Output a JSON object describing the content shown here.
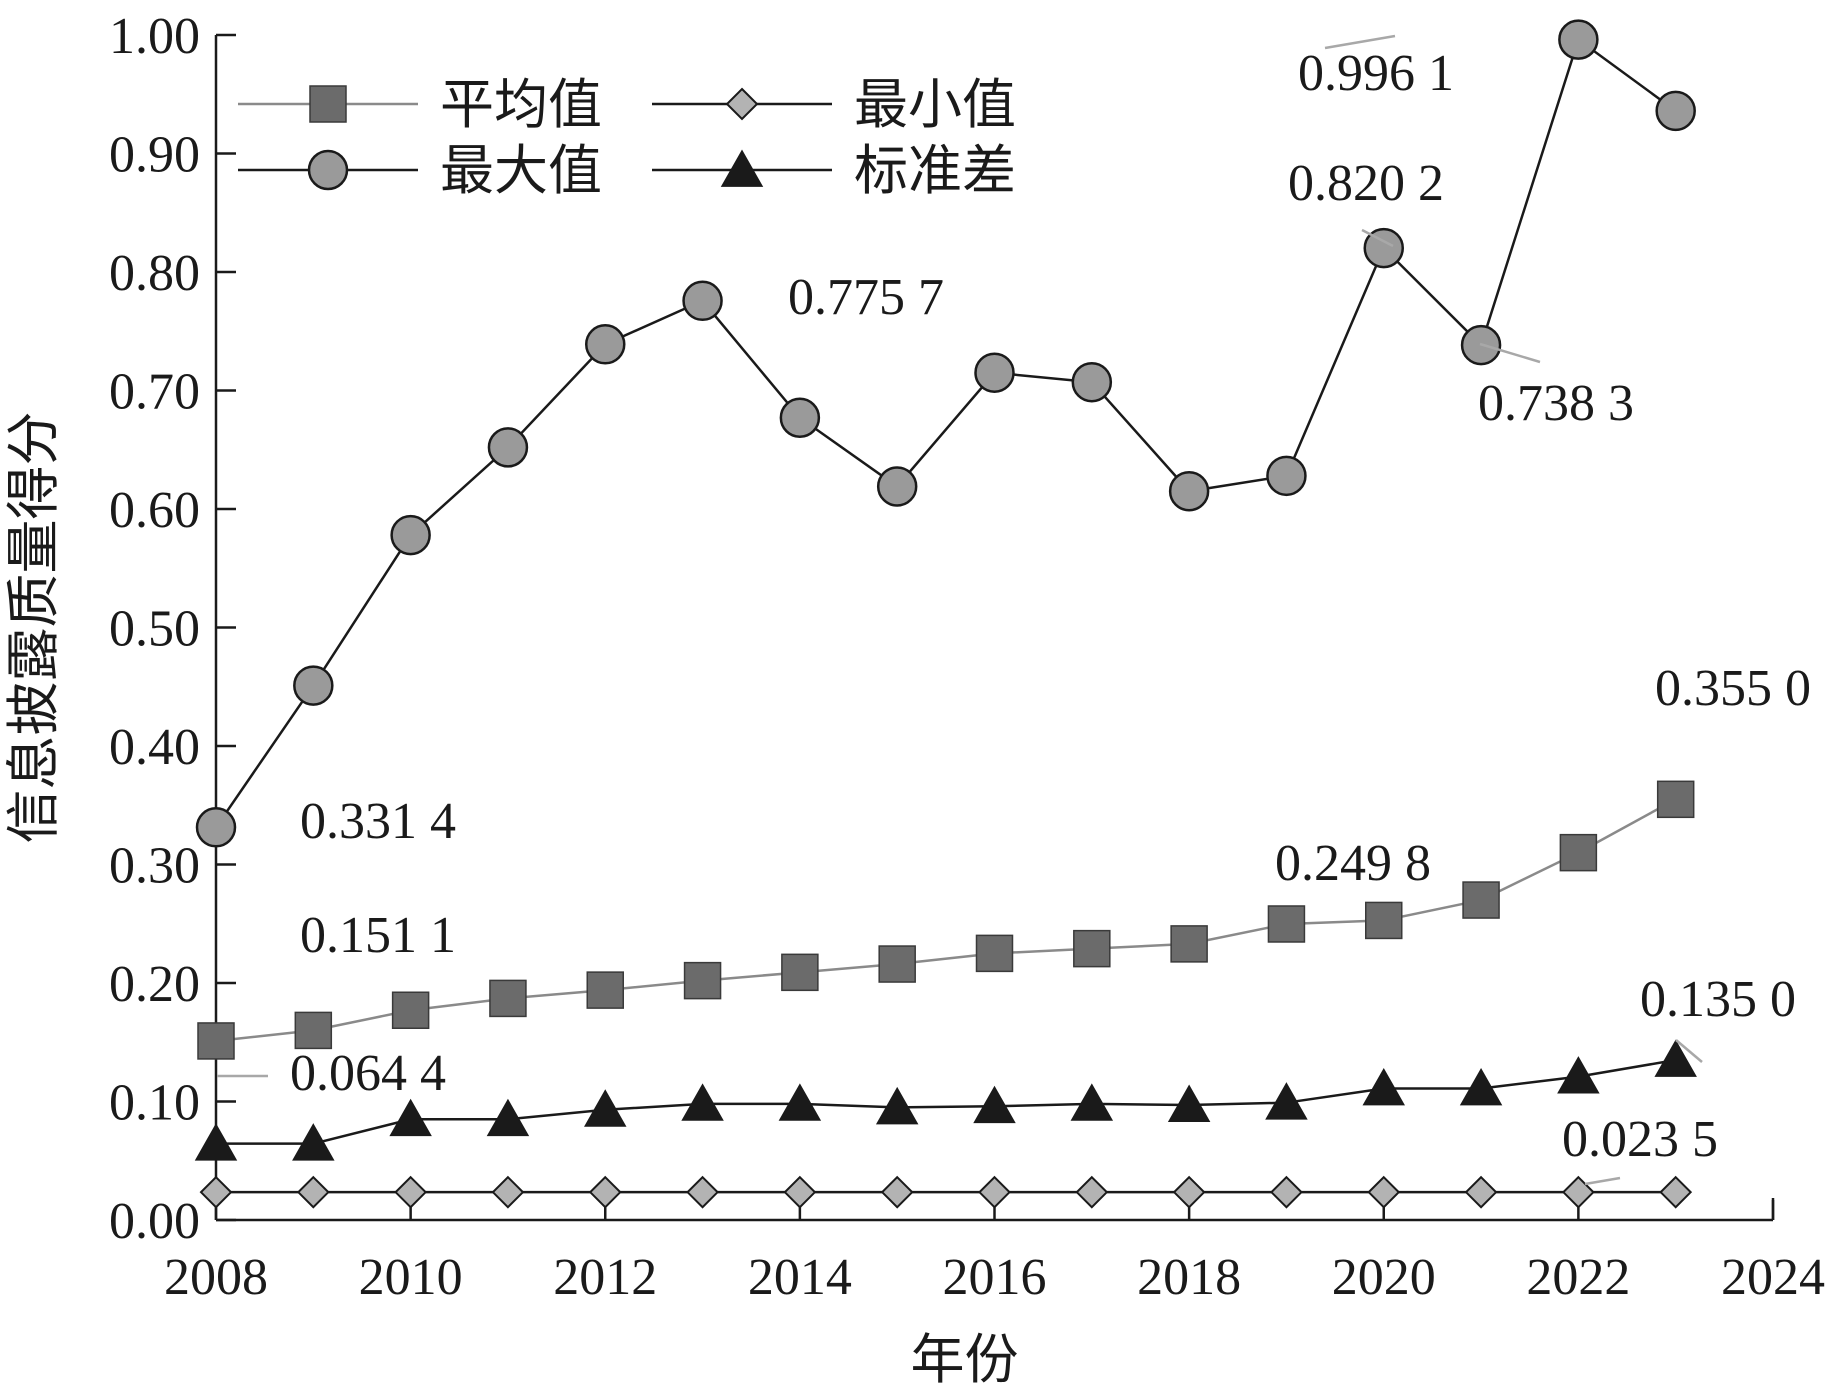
{
  "chart_data": {
    "type": "line",
    "xlabel": "年份",
    "ylabel": "信息披露质量得分",
    "xlim": [
      2008,
      2024
    ],
    "ylim": [
      0,
      1
    ],
    "x_ticks": [
      "2008",
      "2010",
      "2012",
      "2014",
      "2016",
      "2018",
      "2020",
      "2022",
      "2024"
    ],
    "y_ticks": [
      "0.00",
      "0.10",
      "0.20",
      "0.30",
      "0.40",
      "0.50",
      "0.60",
      "0.70",
      "0.80",
      "0.90",
      "1.00"
    ],
    "grid": false,
    "legend_position": "top-left",
    "x": [
      2008,
      2009,
      2010,
      2011,
      2012,
      2013,
      2014,
      2015,
      2016,
      2017,
      2018,
      2019,
      2020,
      2021,
      2022,
      2023
    ],
    "series": [
      {
        "name": "平均值",
        "marker": "square",
        "line_color": "#8a8a8a",
        "marker_color": "#6b6b6b",
        "values": [
          0.1511,
          0.16,
          0.177,
          0.187,
          0.194,
          0.202,
          0.209,
          0.216,
          0.225,
          0.229,
          0.233,
          0.2498,
          0.2528,
          0.27,
          0.31,
          0.355
        ]
      },
      {
        "name": "最小值",
        "marker": "diamond",
        "line_color": "#1a1a1a",
        "marker_color": "#b3b3b3",
        "values": [
          0.0235,
          0.0235,
          0.0235,
          0.0235,
          0.0235,
          0.0235,
          0.0235,
          0.0235,
          0.0235,
          0.0235,
          0.0235,
          0.0235,
          0.0235,
          0.0235,
          0.0235,
          0.0235
        ]
      },
      {
        "name": "最大值",
        "marker": "circle",
        "line_color": "#1a1a1a",
        "marker_color": "#9a9a9a",
        "values": [
          0.3314,
          0.451,
          0.578,
          0.652,
          0.739,
          0.7757,
          0.677,
          0.619,
          0.715,
          0.707,
          0.615,
          0.628,
          0.8202,
          0.7383,
          0.9961,
          0.936
        ]
      },
      {
        "name": "标准差",
        "marker": "triangle",
        "line_color": "#1a1a1a",
        "marker_color": "#1a1a1a",
        "values": [
          0.0644,
          0.0644,
          0.085,
          0.085,
          0.093,
          0.098,
          0.098,
          0.095,
          0.096,
          0.098,
          0.097,
          0.099,
          0.111,
          0.111,
          0.121,
          0.135
        ]
      }
    ],
    "annotations": [
      {
        "text": "0.996 1",
        "x": 2022,
        "y": 0.9961,
        "leader": true
      },
      {
        "text": "0.820 2",
        "x": 2020,
        "y": 0.8202,
        "leader": true
      },
      {
        "text": "0.738 3",
        "x": 2021,
        "y": 0.7383,
        "leader": true
      },
      {
        "text": "0.775 7",
        "x": 2013,
        "y": 0.7757,
        "leader": false
      },
      {
        "text": "0.355 0",
        "x": 2023,
        "y": 0.355,
        "leader": false
      },
      {
        "text": "0.331 4",
        "x": 2008,
        "y": 0.3314,
        "leader": false
      },
      {
        "text": "0.249 8",
        "x": 2019,
        "y": 0.2498,
        "leader": false
      },
      {
        "text": "0.151 1",
        "x": 2008,
        "y": 0.1511,
        "leader": false
      },
      {
        "text": "0.135 0",
        "x": 2023,
        "y": 0.135,
        "leader": true
      },
      {
        "text": "0.064 4",
        "x": 2008,
        "y": 0.0644,
        "leader": true
      },
      {
        "text": "0.023 5",
        "x": 2022,
        "y": 0.0235,
        "leader": true
      }
    ]
  }
}
